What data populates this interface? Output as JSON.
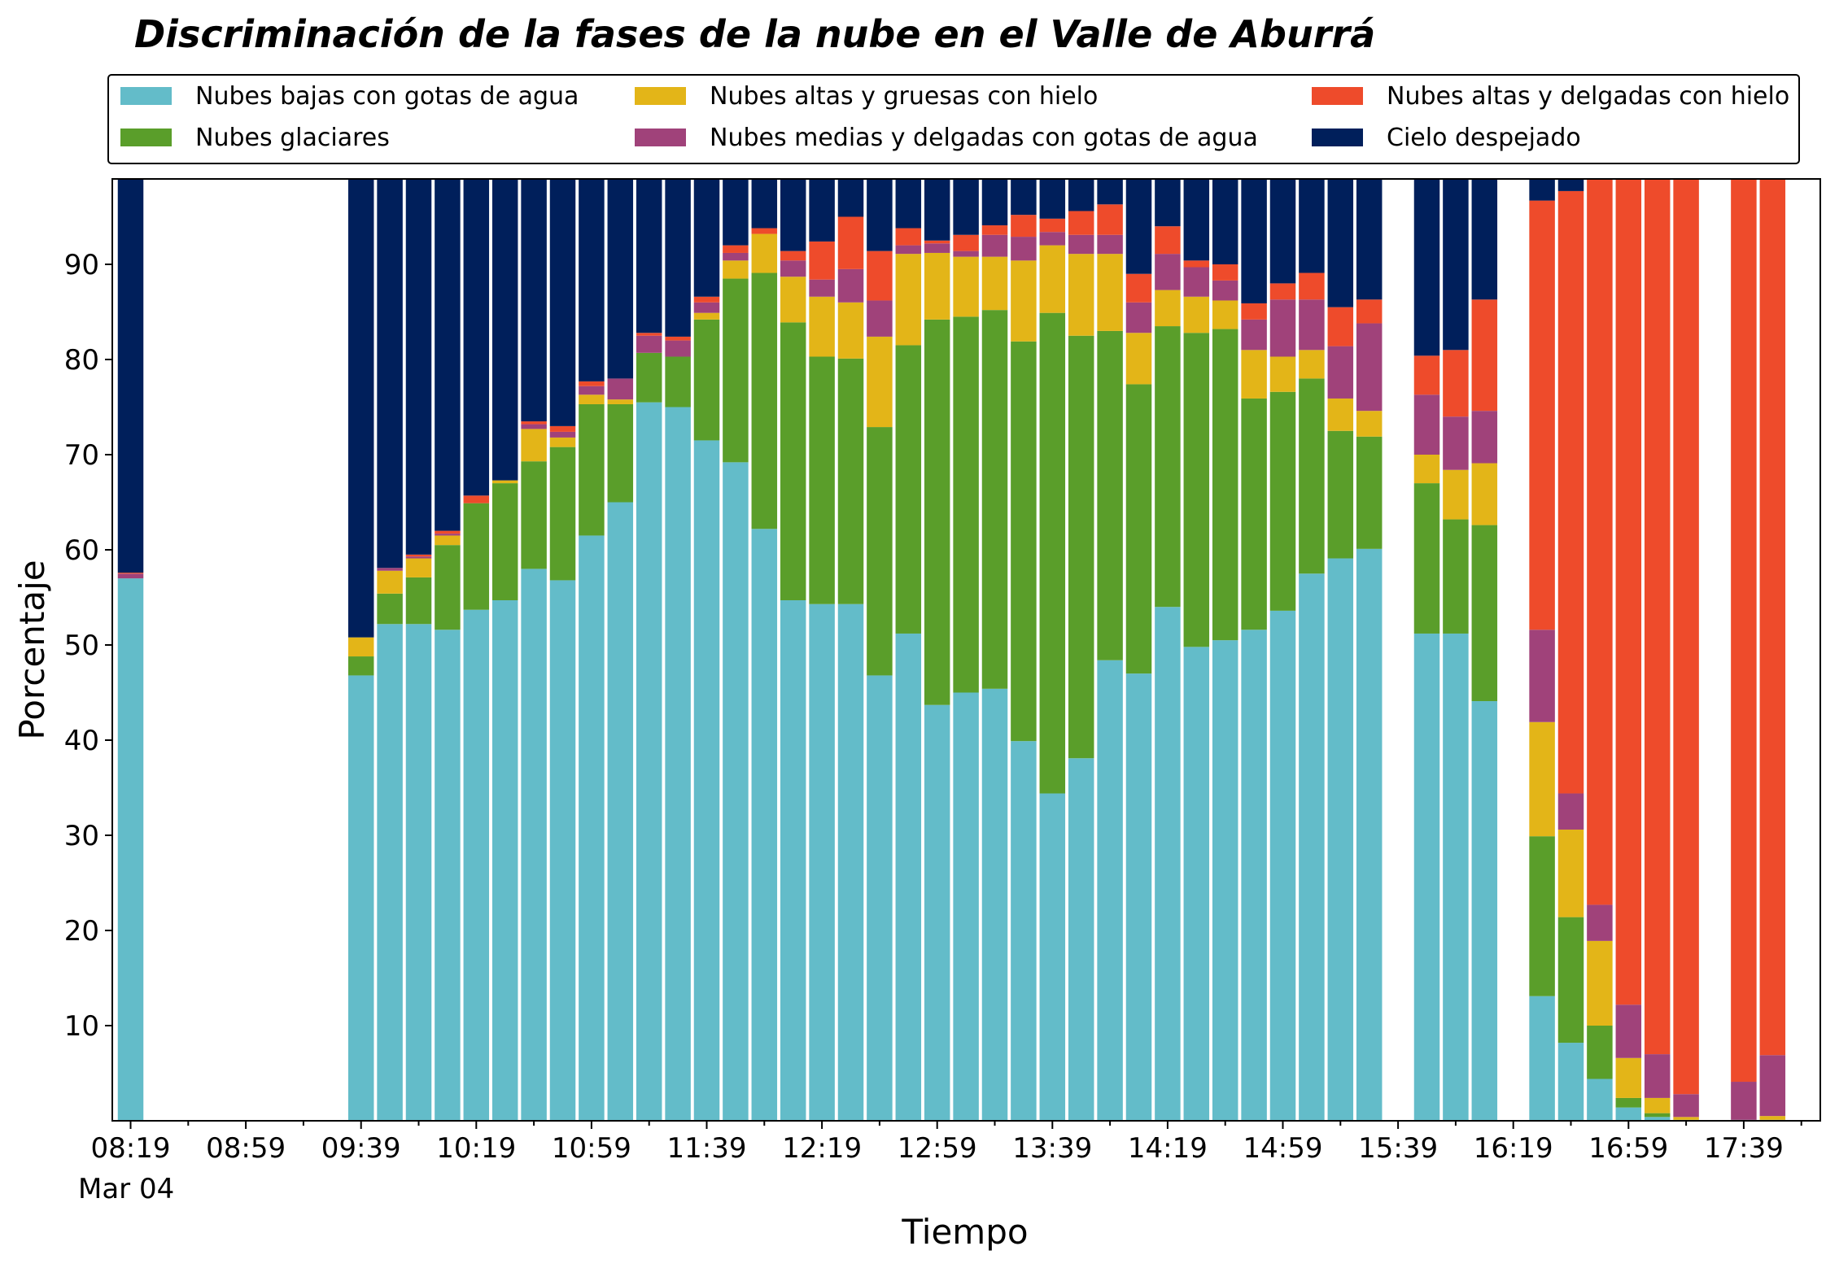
{
  "chart_data": {
    "type": "bar",
    "stacked": true,
    "title": "Discriminación de la fases de la nube en el Valle de Aburrá",
    "xlabel": "Tiempo",
    "ylabel": "Porcentaje",
    "ylim": [
      0,
      100
    ],
    "x_tick_labels": [
      "08:19",
      "08:59",
      "09:39",
      "10:19",
      "10:59",
      "11:39",
      "12:19",
      "12:59",
      "13:39",
      "14:19",
      "14:59",
      "15:39",
      "16:19",
      "16:59",
      "17:39"
    ],
    "x_date_label": "Mar 04",
    "y_ticks": [
      10,
      20,
      30,
      40,
      50,
      60,
      70,
      80,
      90
    ],
    "legend_position": "top",
    "slots_per_10_min": 1,
    "series": [
      {
        "name": "Nubes bajas con gotas de agua",
        "color": "#63bcc9"
      },
      {
        "name": "Nubes glaciares",
        "color": "#5a9e2a"
      },
      {
        "name": "Nubes altas y gruesas con hielo",
        "color": "#e3b518"
      },
      {
        "name": "Nubes medias y delgadas con gotas de agua",
        "color": "#a0427a"
      },
      {
        "name": "Nubes altas y delgadas con hielo",
        "color": "#ee4b2b"
      },
      {
        "name": "Cielo despejado",
        "color": "#001f5b"
      }
    ],
    "legend_order": [
      0,
      2,
      4,
      1,
      3,
      5
    ],
    "bars": [
      {
        "slot": 0,
        "values": [
          57.0,
          0.0,
          0.0,
          0.5,
          0.1,
          42.4
        ]
      },
      {
        "slot": 8,
        "values": [
          46.8,
          2.0,
          2.0,
          0.0,
          0.0,
          49.2
        ]
      },
      {
        "slot": 9,
        "values": [
          52.2,
          3.2,
          2.4,
          0.3,
          0.0,
          41.9
        ]
      },
      {
        "slot": 10,
        "values": [
          52.2,
          4.9,
          2.0,
          0.2,
          0.2,
          40.5
        ]
      },
      {
        "slot": 11,
        "values": [
          51.6,
          8.9,
          1.0,
          0.2,
          0.3,
          38.0
        ]
      },
      {
        "slot": 12,
        "values": [
          53.7,
          11.2,
          0.0,
          0.0,
          0.8,
          34.3
        ]
      },
      {
        "slot": 13,
        "values": [
          54.7,
          12.3,
          0.3,
          0.0,
          0.0,
          32.7
        ]
      },
      {
        "slot": 14,
        "values": [
          58.0,
          11.3,
          3.4,
          0.5,
          0.3,
          26.5
        ]
      },
      {
        "slot": 15,
        "values": [
          56.8,
          14.0,
          1.0,
          0.6,
          0.6,
          27.0
        ]
      },
      {
        "slot": 16,
        "values": [
          61.5,
          13.8,
          1.0,
          0.9,
          0.5,
          22.3
        ]
      },
      {
        "slot": 17,
        "values": [
          65.0,
          10.3,
          0.5,
          2.2,
          0.0,
          22.0
        ]
      },
      {
        "slot": 18,
        "values": [
          75.5,
          5.2,
          0.0,
          1.8,
          0.3,
          17.2
        ]
      },
      {
        "slot": 19,
        "values": [
          75.0,
          5.3,
          0.0,
          1.7,
          0.4,
          17.6
        ]
      },
      {
        "slot": 20,
        "values": [
          71.5,
          12.7,
          0.7,
          1.1,
          0.6,
          13.4
        ]
      },
      {
        "slot": 21,
        "values": [
          69.2,
          19.3,
          1.9,
          0.8,
          0.8,
          8.0
        ]
      },
      {
        "slot": 22,
        "values": [
          62.2,
          26.9,
          4.1,
          0.0,
          0.6,
          6.2
        ]
      },
      {
        "slot": 23,
        "values": [
          54.7,
          29.2,
          4.8,
          1.7,
          1.0,
          8.6
        ]
      },
      {
        "slot": 24,
        "values": [
          54.3,
          26.0,
          6.3,
          1.8,
          4.0,
          7.6
        ]
      },
      {
        "slot": 25,
        "values": [
          54.3,
          25.8,
          5.9,
          3.5,
          5.5,
          5.0
        ]
      },
      {
        "slot": 26,
        "values": [
          46.8,
          26.1,
          9.5,
          3.8,
          5.2,
          8.6
        ]
      },
      {
        "slot": 27,
        "values": [
          51.2,
          30.3,
          9.6,
          0.9,
          1.8,
          6.2
        ]
      },
      {
        "slot": 28,
        "values": [
          43.7,
          40.5,
          7.0,
          1.0,
          0.3,
          7.5
        ]
      },
      {
        "slot": 29,
        "values": [
          45.0,
          39.5,
          6.3,
          0.6,
          1.7,
          6.9
        ]
      },
      {
        "slot": 30,
        "values": [
          45.4,
          39.8,
          5.6,
          2.3,
          1.0,
          5.9
        ]
      },
      {
        "slot": 31,
        "values": [
          39.9,
          42.0,
          8.5,
          2.5,
          2.3,
          4.8
        ]
      },
      {
        "slot": 32,
        "values": [
          34.4,
          50.5,
          7.1,
          1.4,
          1.4,
          5.2
        ]
      },
      {
        "slot": 33,
        "values": [
          38.1,
          44.4,
          8.6,
          2.0,
          2.5,
          4.4
        ]
      },
      {
        "slot": 34,
        "values": [
          48.4,
          34.6,
          8.1,
          2.0,
          3.2,
          3.7
        ]
      },
      {
        "slot": 35,
        "values": [
          47.0,
          30.4,
          5.4,
          3.2,
          3.0,
          11.0
        ]
      },
      {
        "slot": 36,
        "values": [
          54.0,
          29.5,
          3.8,
          3.8,
          2.9,
          6.0
        ]
      },
      {
        "slot": 37,
        "values": [
          49.8,
          33.0,
          3.8,
          3.1,
          0.7,
          9.6
        ]
      },
      {
        "slot": 38,
        "values": [
          50.5,
          32.7,
          3.0,
          2.1,
          1.7,
          10.0
        ]
      },
      {
        "slot": 39,
        "values": [
          51.6,
          24.3,
          5.1,
          3.2,
          1.7,
          14.1
        ]
      },
      {
        "slot": 40,
        "values": [
          53.6,
          23.0,
          3.7,
          6.0,
          1.7,
          12.0
        ]
      },
      {
        "slot": 41,
        "values": [
          57.5,
          20.5,
          3.0,
          5.3,
          2.8,
          10.9
        ]
      },
      {
        "slot": 42,
        "values": [
          59.1,
          13.4,
          3.4,
          5.5,
          4.1,
          14.5
        ]
      },
      {
        "slot": 43,
        "values": [
          60.1,
          11.8,
          2.7,
          9.2,
          2.5,
          13.7
        ]
      },
      {
        "slot": 45,
        "values": [
          51.2,
          15.8,
          3.0,
          6.3,
          4.1,
          19.6
        ]
      },
      {
        "slot": 46,
        "values": [
          51.2,
          12.0,
          5.2,
          5.6,
          7.0,
          19.0
        ]
      },
      {
        "slot": 47,
        "values": [
          44.1,
          18.5,
          6.5,
          5.5,
          11.7,
          13.7
        ]
      },
      {
        "slot": 49,
        "values": [
          13.1,
          16.8,
          12.0,
          9.7,
          45.1,
          3.3
        ]
      },
      {
        "slot": 50,
        "values": [
          8.2,
          13.2,
          9.2,
          3.8,
          63.3,
          2.3
        ]
      },
      {
        "slot": 51,
        "values": [
          4.4,
          5.6,
          8.9,
          3.8,
          76.9,
          0.4
        ]
      },
      {
        "slot": 52,
        "values": [
          1.4,
          1.0,
          4.2,
          5.6,
          87.8,
          0.0
        ]
      },
      {
        "slot": 53,
        "values": [
          0.4,
          0.4,
          1.6,
          4.6,
          93.0,
          0.0
        ]
      },
      {
        "slot": 54,
        "values": [
          0.1,
          0.0,
          0.3,
          2.4,
          97.2,
          0.0
        ]
      },
      {
        "slot": 56,
        "values": [
          0.1,
          0.0,
          0.0,
          4.0,
          95.9,
          0.0
        ]
      },
      {
        "slot": 57,
        "values": [
          0.1,
          0.0,
          0.4,
          6.4,
          93.1,
          0.0
        ]
      }
    ]
  }
}
